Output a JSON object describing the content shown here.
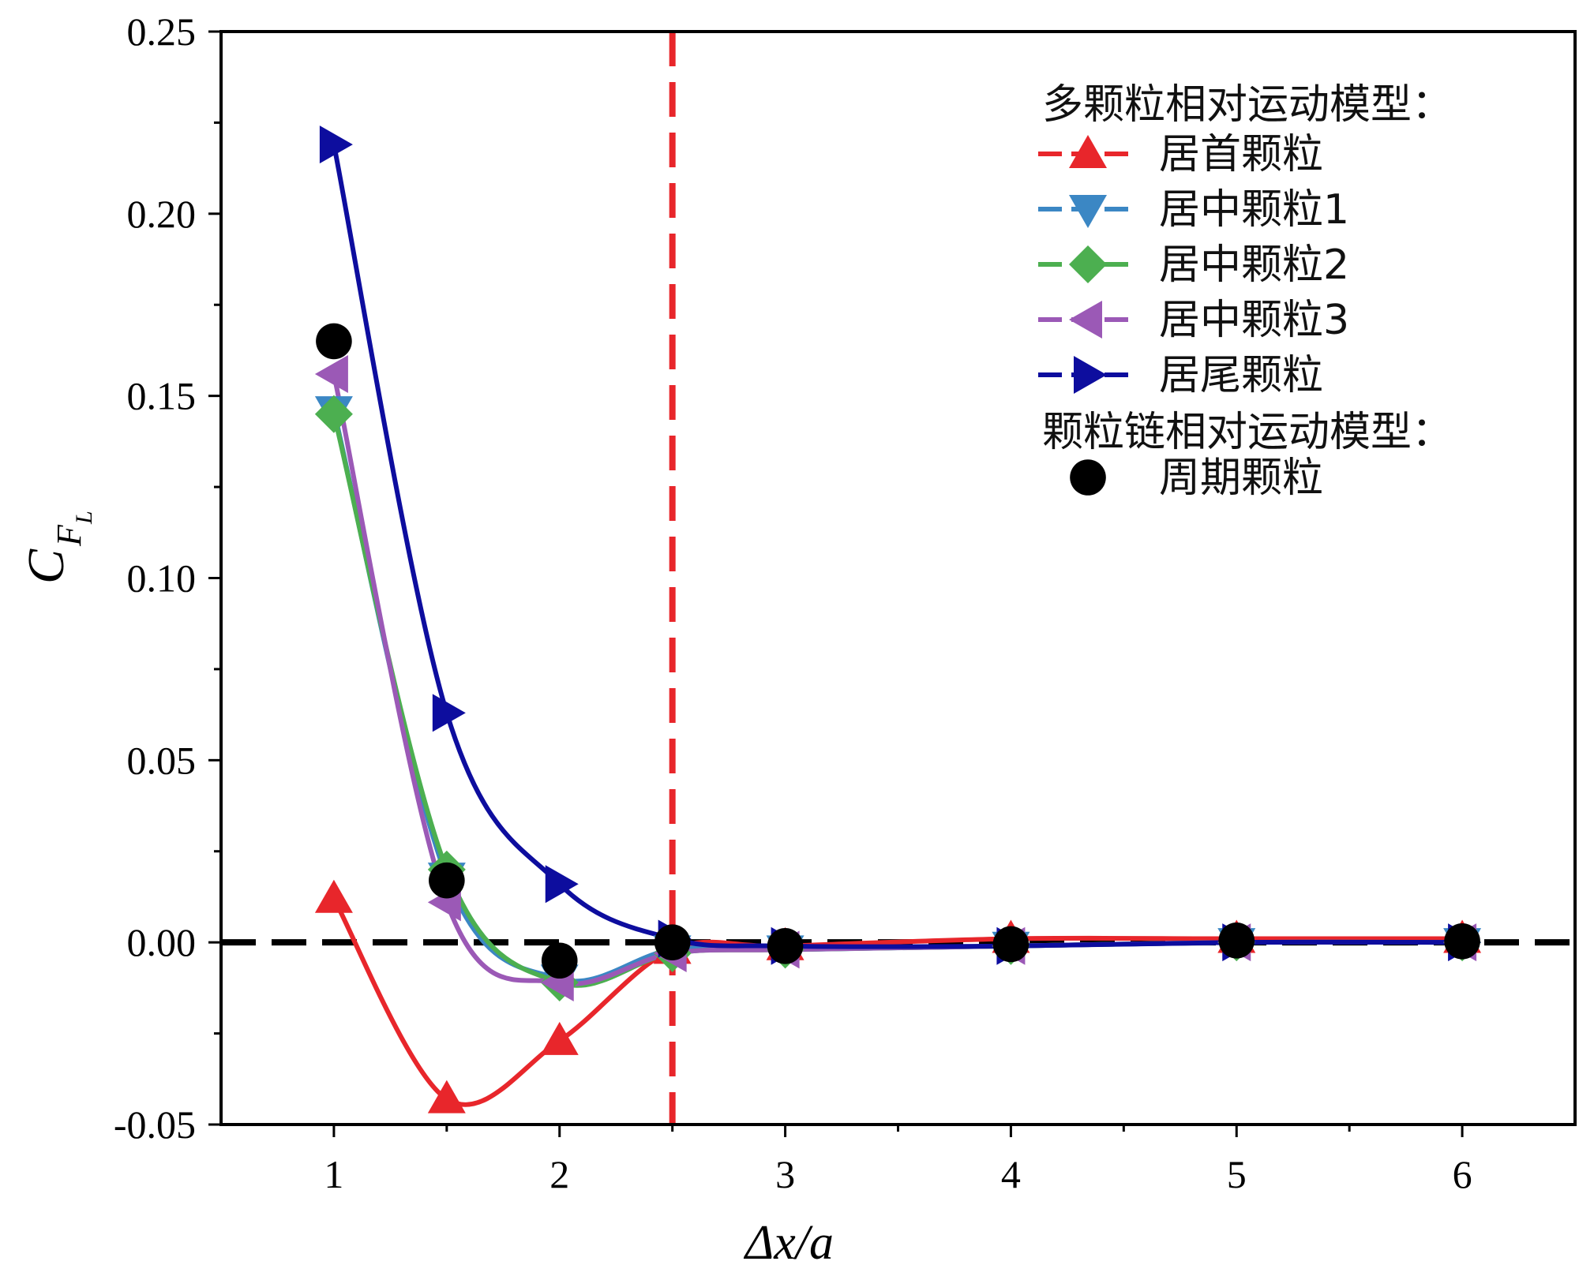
{
  "chart_data": {
    "type": "line",
    "xlabel": "Δx/a",
    "ylabel_main": "C",
    "ylabel_sub": "F",
    "ylabel_subsub": "L",
    "xlim": [
      0.5,
      6.5
    ],
    "ylim": [
      -0.05,
      0.25
    ],
    "xticks": [
      1,
      2,
      3,
      4,
      5,
      6
    ],
    "xtick_labels": [
      "1",
      "2",
      "3",
      "4",
      "5",
      "6"
    ],
    "yticks": [
      -0.05,
      0.0,
      0.05,
      0.1,
      0.15,
      0.2,
      0.25
    ],
    "ytick_labels": [
      "-0.05",
      "0.00",
      "0.05",
      "0.10",
      "0.15",
      "0.20",
      "0.25"
    ],
    "reference_lines": [
      {
        "orientation": "horizontal",
        "value": 0.0,
        "color": "#000000",
        "style": "dashed"
      },
      {
        "orientation": "vertical",
        "value": 2.5,
        "color": "#e8262b",
        "style": "dashed"
      }
    ],
    "legend": {
      "position": "top-right",
      "group1_title": "多颗粒相对运动模型：",
      "group2_title": "颗粒链相对运动模型："
    },
    "x": [
      1,
      1.5,
      2,
      2.5,
      3,
      4,
      5,
      6
    ],
    "series": [
      {
        "name": "居首颗粒",
        "color": "#e8262b",
        "marker": "triangle-up",
        "values": [
          0.012,
          -0.043,
          -0.027,
          -0.002,
          -0.001,
          0.001,
          0.001,
          0.001
        ]
      },
      {
        "name": "居中颗粒1",
        "color": "#3b87c4",
        "marker": "triangle-down",
        "values": [
          0.146,
          0.018,
          -0.01,
          -0.002,
          -0.002,
          -0.001,
          0.0,
          0.0
        ]
      },
      {
        "name": "居中颗粒2",
        "color": "#4caf50",
        "marker": "diamond",
        "values": [
          0.145,
          0.02,
          -0.011,
          -0.003,
          -0.002,
          -0.001,
          0.0,
          0.0
        ]
      },
      {
        "name": "居中颗粒3",
        "color": "#9b59b6",
        "marker": "triangle-left",
        "values": [
          0.156,
          0.011,
          -0.011,
          -0.003,
          -0.002,
          -0.001,
          0.0,
          0.0
        ]
      },
      {
        "name": "居尾颗粒",
        "color": "#0d0d9e",
        "marker": "triangle-right",
        "values": [
          0.219,
          0.063,
          0.016,
          0.001,
          -0.001,
          -0.001,
          0.0,
          0.0
        ]
      },
      {
        "name": "周期颗粒",
        "color": "#000000",
        "marker": "circle",
        "line": false,
        "values": [
          0.165,
          0.017,
          -0.005,
          0.0,
          -0.001,
          -0.0005,
          0.0005,
          0.0003
        ]
      }
    ]
  }
}
